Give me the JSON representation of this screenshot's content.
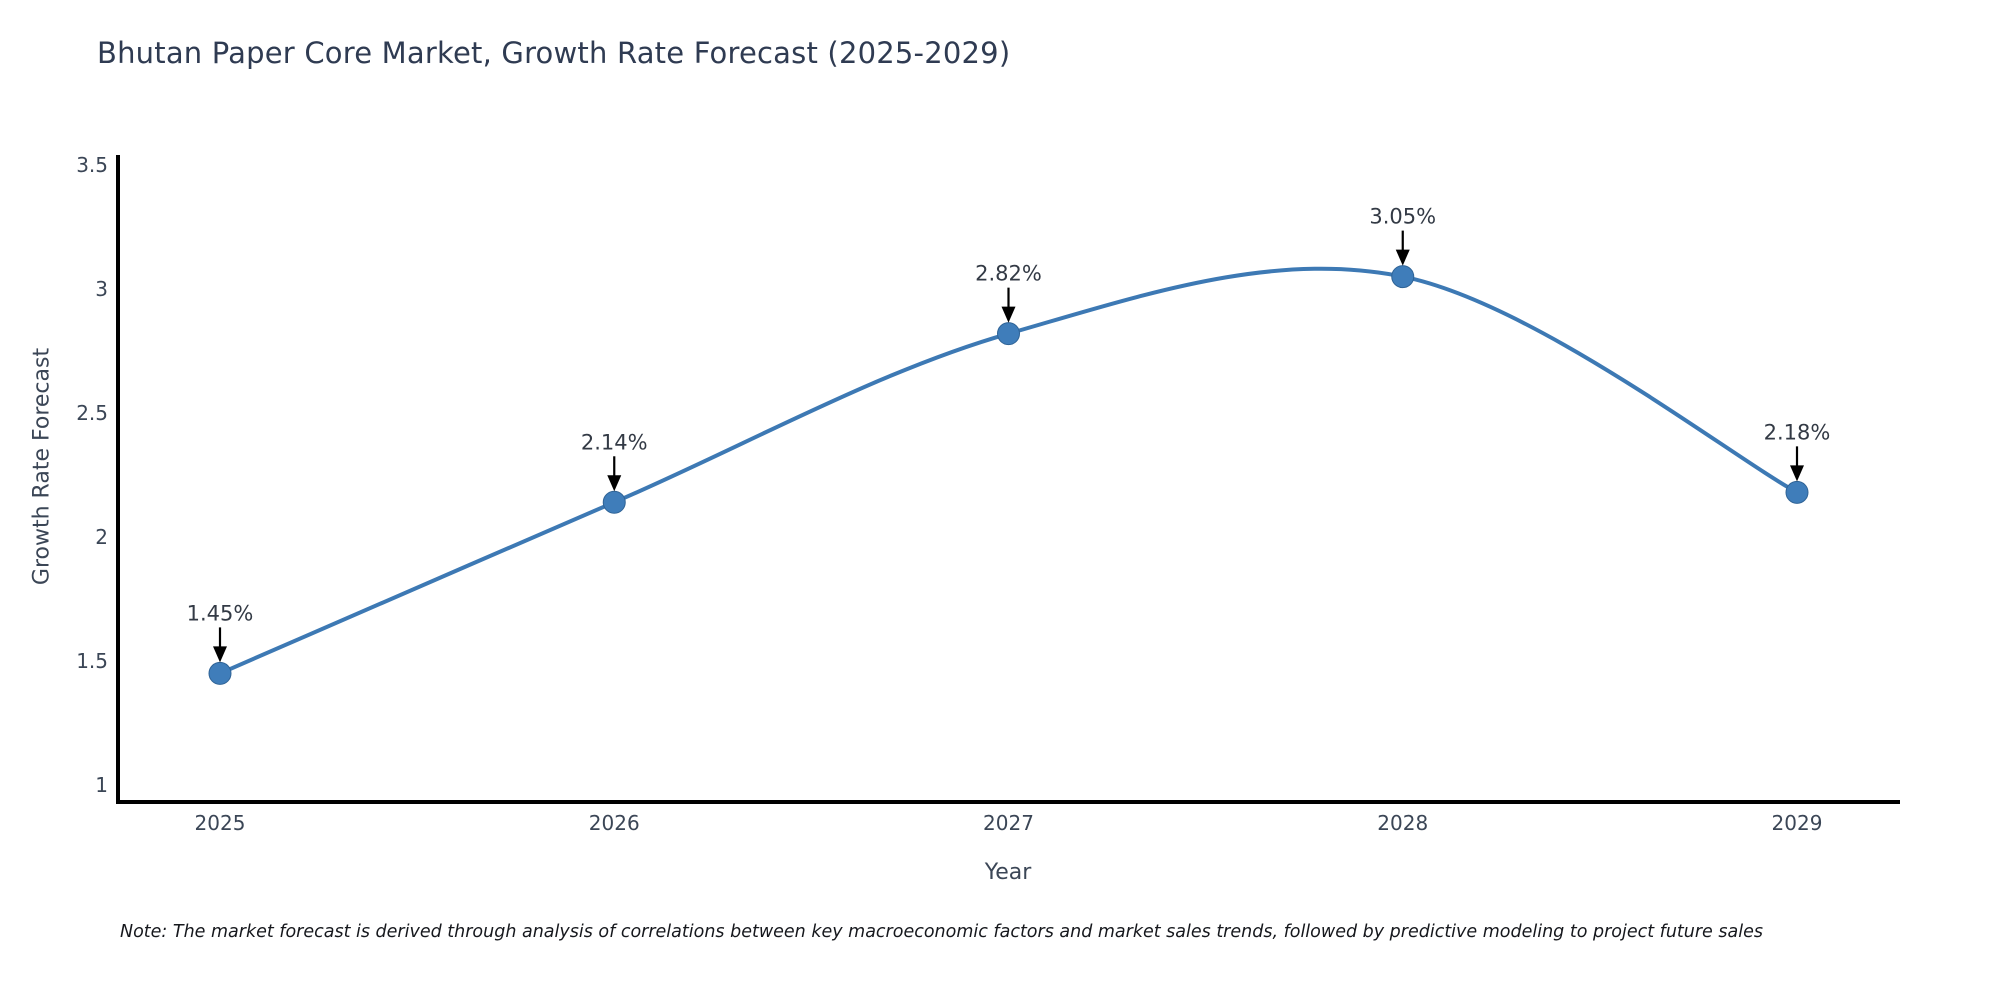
{
  "chart": {
    "title": "Bhutan Paper Core Market, Growth Rate Forecast (2025-2029)",
    "note": "Note: The market forecast is derived through analysis of correlations between key macroeconomic factors and market sales trends, followed by predictive modeling to project future sales"
  },
  "chart_data": {
    "type": "line",
    "curve": "spline",
    "title": "Bhutan Paper Core Market, Growth Rate Forecast (2025-2029)",
    "xlabel": "Year",
    "ylabel": "Growth Rate Forecast",
    "x": [
      2025,
      2026,
      2027,
      2028,
      2029
    ],
    "values": [
      1.45,
      2.14,
      2.82,
      3.05,
      2.18
    ],
    "point_labels": [
      "1.45%",
      "2.14%",
      "2.82%",
      "3.05%",
      "2.18%"
    ],
    "yticks": [
      3.5,
      3,
      2.5,
      2,
      1.5,
      1
    ],
    "ylim": [
      0.93,
      3.54
    ],
    "grid": false,
    "legend": "none",
    "note": "Note: The market forecast is derived through analysis of correlations between key macroeconomic factors and market sales trends, followed by predictive modeling to project future sales",
    "colors": {
      "line": "#3d79b4",
      "marker_fill": "#3f7dba",
      "marker_edge": "#2f6396",
      "axis": "#000000",
      "annotation_text": "#333a45",
      "annotation_arrow": "#000000",
      "tick_text": "#3b4656",
      "title_text": "#2f3b52"
    }
  }
}
